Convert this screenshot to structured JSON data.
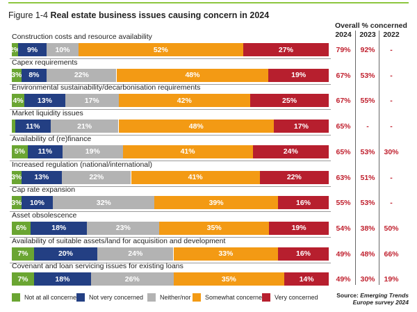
{
  "chart_data": {
    "type": "bar",
    "orientation": "horizontal",
    "stacked": true,
    "figure_number": "Figure 1-4",
    "title": "Real estate business issues causing concern in 2024",
    "overall_header": "Overall % concerned",
    "years": [
      "2024",
      "2023",
      "2022"
    ],
    "categories": [
      "Construction costs and resource availability",
      "Capex requirements",
      "Environmental sustainability/decarbonisation requirements",
      "Market liquidity issues",
      "Availability of (re)finance",
      "Increased regulation (national/international)",
      "Cap rate expansion",
      "Asset obsolescence",
      "Availability of suitable assets/land for acquisition and development",
      "Covenant and loan servicing issues for existing loans"
    ],
    "series": [
      {
        "name": "Not at all concerned",
        "color": "#6aa532",
        "text_color": "#ffffff",
        "values": [
          2,
          3,
          4,
          1,
          5,
          3,
          3,
          6,
          7,
          7
        ],
        "labels": [
          "2%",
          "3%",
          "4%",
          "",
          "5%",
          "3%",
          "3%",
          "6%",
          "7%",
          "7%"
        ]
      },
      {
        "name": "Not very concerned",
        "color": "#233f83",
        "text_color": "#ffffff",
        "values": [
          9,
          8,
          13,
          11,
          11,
          13,
          10,
          18,
          20,
          18
        ],
        "labels": [
          "9%",
          "8%",
          "13%",
          "11%",
          "11%",
          "13%",
          "10%",
          "18%",
          "20%",
          "18%"
        ]
      },
      {
        "name": "Neither/nor",
        "color": "#b3b3b3",
        "text_color": "#ffffff",
        "values": [
          10,
          22,
          17,
          21,
          19,
          22,
          32,
          23,
          24,
          26
        ],
        "labels": [
          "10%",
          "22%",
          "17%",
          "21%",
          "19%",
          "22%",
          "32%",
          "23%",
          "24%",
          "26%"
        ]
      },
      {
        "name": "Somewhat concerned",
        "color": "#f39a14",
        "text_color": "#ffffff",
        "values": [
          52,
          48,
          42,
          48,
          41,
          41,
          39,
          35,
          33,
          35
        ],
        "labels": [
          "52%",
          "48%",
          "42%",
          "48%",
          "41%",
          "41%",
          "39%",
          "35%",
          "33%",
          "35%"
        ]
      },
      {
        "name": "Very concerned",
        "color": "#b71f2e",
        "text_color": "#ffffff",
        "values": [
          27,
          19,
          25,
          17,
          24,
          22,
          16,
          19,
          16,
          14
        ],
        "labels": [
          "27%",
          "19%",
          "25%",
          "17%",
          "24%",
          "22%",
          "16%",
          "19%",
          "16%",
          "14%"
        ]
      }
    ],
    "overall": [
      [
        "79%",
        "92%",
        "-"
      ],
      [
        "67%",
        "53%",
        "-"
      ],
      [
        "67%",
        "55%",
        "-"
      ],
      [
        "65%",
        "-",
        "-"
      ],
      [
        "65%",
        "53%",
        "30%"
      ],
      [
        "63%",
        "51%",
        "-"
      ],
      [
        "55%",
        "53%",
        "-"
      ],
      [
        "54%",
        "38%",
        "50%"
      ],
      [
        "49%",
        "48%",
        "66%"
      ],
      [
        "49%",
        "30%",
        "19%"
      ]
    ],
    "xlim": [
      0,
      100
    ],
    "source_label": "Source:",
    "source_name": "Emerging Trends Europe survey 2024",
    "source_text_line1": "Emerging Trends",
    "source_text_line2": "Europe survey 2024"
  }
}
